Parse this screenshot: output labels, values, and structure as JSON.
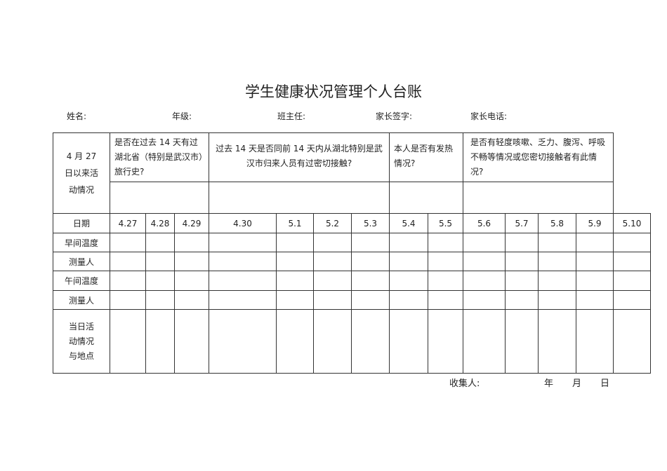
{
  "title": "学生健康状况管理个人台账",
  "info": {
    "name": "姓名:",
    "grade": "年级:",
    "teacher": "班主任:",
    "parent_sign": "家长签字:",
    "parent_phone": "家长电话:"
  },
  "table": {
    "row_label": "4 月 27 日以来活动情况",
    "questions": [
      "是否在过去  14  天有过湖北省（特别是武汉市）旅行史?",
      "过去  14  天是否同前  14  天内从湖北特别是武汉市归来人员有过密切接触?",
      "本人是否有发热情况?",
      "是否有轻度咳嗽、乏力、腹泻、呼吸不畅等情况或您密切接触者有此情况?"
    ],
    "date_label": "日期",
    "dates": [
      "4.27",
      "4.28",
      "4.29",
      "4.30",
      "5.1",
      "5.2",
      "5.3",
      "5.4",
      "5.5",
      "5.6",
      "5.7",
      "5.8",
      "5.9",
      "5.10"
    ],
    "rows": [
      "早间温度",
      "测量人",
      "午间温度",
      "测量人",
      "当日活动情况与地点"
    ]
  },
  "footer": {
    "collector": "收集人:",
    "year": "年",
    "month": "月",
    "day": "日"
  }
}
